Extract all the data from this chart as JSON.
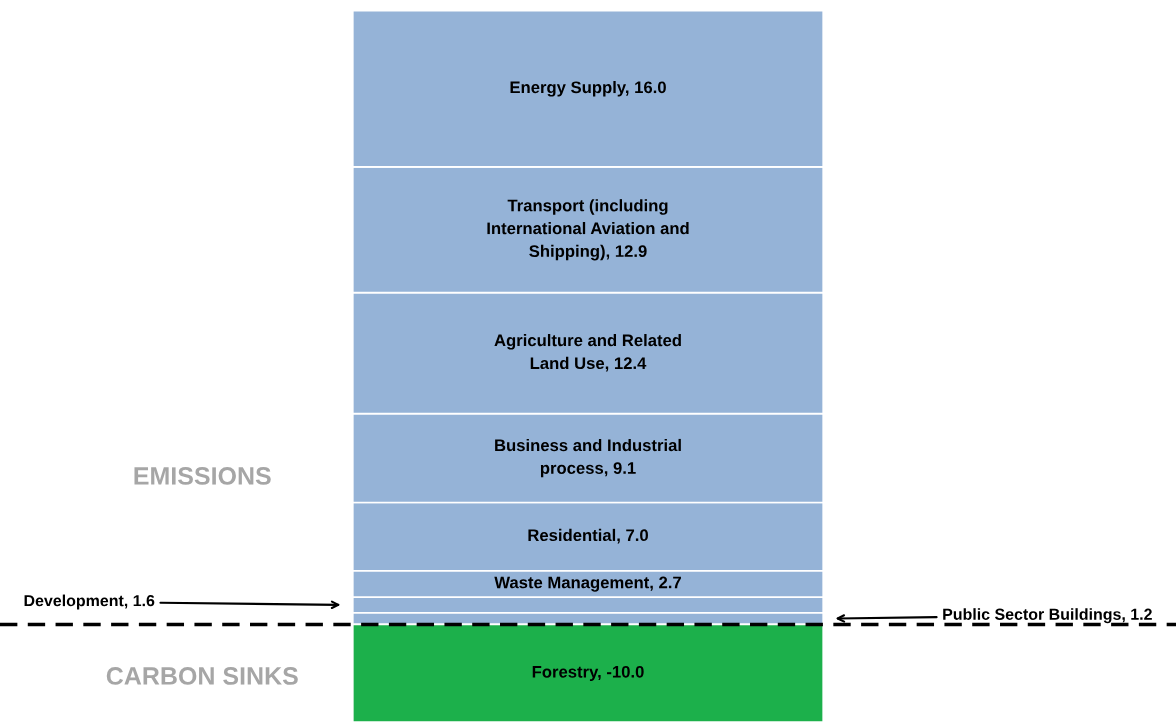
{
  "chart_data": {
    "type": "bar",
    "stacked": true,
    "categories": [
      null
    ],
    "ylim": [
      -10,
      64
    ],
    "series": [
      {
        "color": "#95b3d7",
        "values": [
          1.2
        ],
        "value_labels": [
          null
        ]
      },
      {
        "color": "#95b3d7",
        "values": [
          1.6
        ],
        "value_labels": [
          null
        ]
      },
      {
        "color": "#95b3d7",
        "values": [
          2.7
        ],
        "value_labels": [
          "Waste Management, 2.7"
        ]
      },
      {
        "color": "#95b3d7",
        "values": [
          7.0
        ],
        "value_labels": [
          "Residential, 7.0"
        ]
      },
      {
        "color": "#95b3d7",
        "values": [
          9.1
        ],
        "value_labels": [
          "Business and Industrial\nprocess, 9.1"
        ]
      },
      {
        "color": "#95b3d7",
        "values": [
          12.4
        ],
        "value_labels": [
          "Agriculture and Related\nLand Use, 12.4"
        ]
      },
      {
        "color": "#95b3d7",
        "values": [
          12.9
        ],
        "value_labels": [
          "Transport (including\nInternational Aviation and\nShipping), 12.9"
        ]
      },
      {
        "color": "#95b3d7",
        "values": [
          16.0
        ],
        "value_labels": [
          "Energy Supply, 16.0"
        ]
      },
      {
        "color": "#1cb04b",
        "values": [
          -10.0
        ],
        "value_labels": [
          "Forestry, -10.0"
        ]
      }
    ],
    "ref_lines": [
      {
        "axis": "y",
        "value": 0,
        "color": "#000000",
        "line_style": "dashed"
      }
    ],
    "annotations": [
      "EMISSIONS",
      "CARBON SINKS",
      "Public Sector Buildings, 1.2",
      "Development, 1.6"
    ]
  }
}
